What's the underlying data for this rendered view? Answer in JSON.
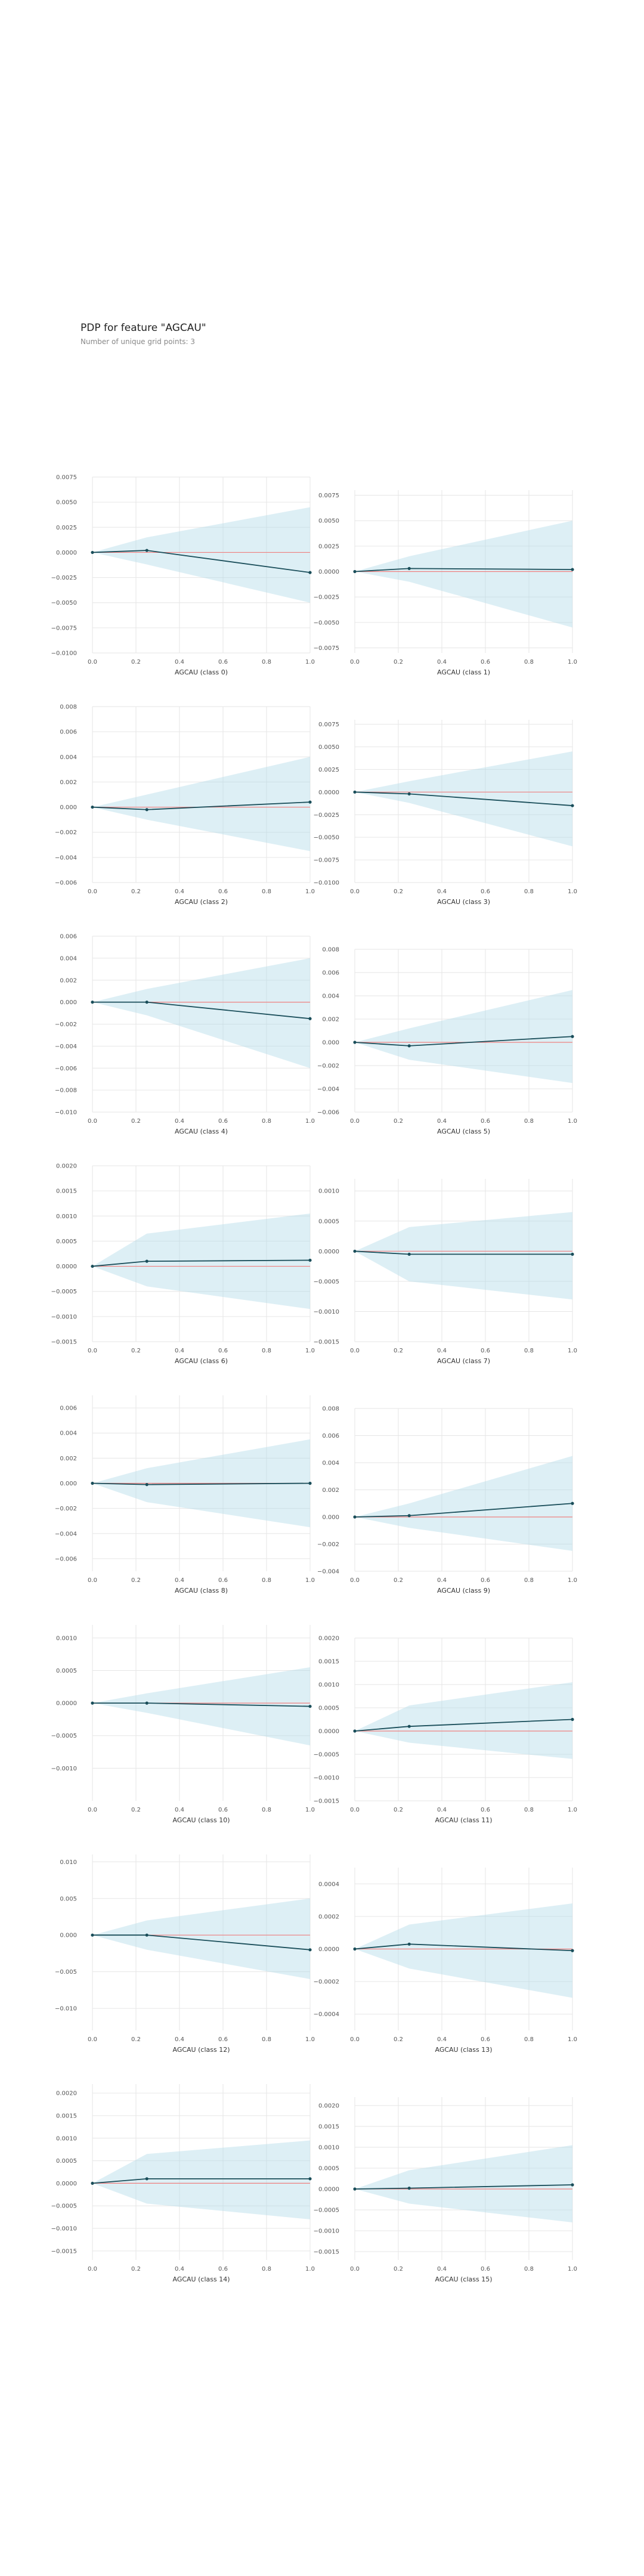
{
  "header": {
    "title": "PDP for feature \"AGCAU\"",
    "subtitle": "Number of unique grid points: 3"
  },
  "colors": {
    "band": "#add8e6",
    "line": "#1a4e5a",
    "zero": "#f08080",
    "grid": "#e6e6e6"
  },
  "chart_data": [
    {
      "type": "line",
      "xlabel": "AGCAU (class 0)",
      "x": [
        0,
        0.25,
        1
      ],
      "y": [
        0,
        0.0002,
        -0.002
      ],
      "upper": [
        0,
        0.0015,
        0.0045
      ],
      "lower": [
        0,
        -0.0012,
        -0.005
      ],
      "ylim": [
        -0.01,
        0.0075
      ],
      "yticks": [
        -0.01,
        -0.0075,
        -0.005,
        -0.0025,
        0.0,
        0.0025,
        0.005,
        0.0075
      ],
      "xticks": [
        0.0,
        0.2,
        0.4,
        0.6,
        0.8,
        1.0
      ],
      "ytick_labels": [
        "−0.0100",
        "−0.0075",
        "−0.0050",
        "−0.0025",
        "0.0000",
        "0.0025",
        "0.0050",
        "0.0075"
      ]
    },
    {
      "type": "line",
      "xlabel": "AGCAU (class 1)",
      "x": [
        0,
        0.25,
        1
      ],
      "y": [
        0,
        0.0003,
        0.0002
      ],
      "upper": [
        0,
        0.0015,
        0.005
      ],
      "lower": [
        0,
        -0.001,
        -0.0055
      ],
      "ylim": [
        -0.008,
        0.008
      ],
      "yticks": [
        -0.0075,
        -0.005,
        -0.0025,
        0.0,
        0.0025,
        0.005,
        0.0075
      ],
      "xticks": [
        0.0,
        0.2,
        0.4,
        0.6,
        0.8,
        1.0
      ],
      "ytick_labels": [
        "−0.0075",
        "−0.0050",
        "−0.0025",
        "0.0000",
        "0.0025",
        "0.0050",
        "0.0075"
      ]
    },
    {
      "type": "line",
      "xlabel": "AGCAU (class 2)",
      "x": [
        0,
        0.25,
        1
      ],
      "y": [
        0,
        -0.0002,
        0.0004
      ],
      "upper": [
        0,
        0.001,
        0.004
      ],
      "lower": [
        0,
        -0.001,
        -0.0035
      ],
      "ylim": [
        -0.006,
        0.008
      ],
      "yticks": [
        -0.006,
        -0.004,
        -0.002,
        0.0,
        0.002,
        0.004,
        0.006,
        0.008
      ],
      "xticks": [
        0.0,
        0.2,
        0.4,
        0.6,
        0.8,
        1.0
      ],
      "ytick_labels": [
        "−0.006",
        "−0.004",
        "−0.002",
        "0.000",
        "0.002",
        "0.004",
        "0.006",
        "0.008"
      ]
    },
    {
      "type": "line",
      "xlabel": "AGCAU (class 3)",
      "x": [
        0,
        0.25,
        1
      ],
      "y": [
        0,
        -0.0002,
        -0.0015
      ],
      "upper": [
        0,
        0.0012,
        0.0045
      ],
      "lower": [
        0,
        -0.0012,
        -0.006
      ],
      "ylim": [
        -0.01,
        0.008
      ],
      "yticks": [
        -0.01,
        -0.0075,
        -0.005,
        -0.0025,
        0.0,
        0.0025,
        0.005,
        0.0075
      ],
      "xticks": [
        0.0,
        0.2,
        0.4,
        0.6,
        0.8,
        1.0
      ],
      "ytick_labels": [
        "−0.0100",
        "−0.0075",
        "−0.0050",
        "−0.0025",
        "0.0000",
        "0.0025",
        "0.0050",
        "0.0075"
      ]
    },
    {
      "type": "line",
      "xlabel": "AGCAU (class 4)",
      "x": [
        0,
        0.25,
        1
      ],
      "y": [
        0,
        0.0,
        -0.0015
      ],
      "upper": [
        0,
        0.0012,
        0.004
      ],
      "lower": [
        0,
        -0.0012,
        -0.006
      ],
      "ylim": [
        -0.01,
        0.006
      ],
      "yticks": [
        -0.01,
        -0.008,
        -0.006,
        -0.004,
        -0.002,
        0.0,
        0.002,
        0.004,
        0.006
      ],
      "xticks": [
        0.0,
        0.2,
        0.4,
        0.6,
        0.8,
        1.0
      ],
      "ytick_labels": [
        "−0.010",
        "−0.008",
        "−0.006",
        "−0.004",
        "−0.002",
        "0.000",
        "0.002",
        "0.004",
        "0.006"
      ]
    },
    {
      "type": "line",
      "xlabel": "AGCAU (class 5)",
      "x": [
        0,
        0.25,
        1
      ],
      "y": [
        0,
        -0.0003,
        0.0005
      ],
      "upper": [
        0,
        0.0012,
        0.0045
      ],
      "lower": [
        0,
        -0.0015,
        -0.0035
      ],
      "ylim": [
        -0.006,
        0.008
      ],
      "yticks": [
        -0.006,
        -0.004,
        -0.002,
        0.0,
        0.002,
        0.004,
        0.006,
        0.008
      ],
      "xticks": [
        0.0,
        0.2,
        0.4,
        0.6,
        0.8,
        1.0
      ],
      "ytick_labels": [
        "−0.006",
        "−0.004",
        "−0.002",
        "0.000",
        "0.002",
        "0.004",
        "0.006",
        "0.008"
      ]
    },
    {
      "type": "line",
      "xlabel": "AGCAU (class 6)",
      "x": [
        0,
        0.25,
        1
      ],
      "y": [
        0,
        0.0001,
        0.00012
      ],
      "upper": [
        0,
        0.00065,
        0.00105
      ],
      "lower": [
        0,
        -0.0004,
        -0.00085
      ],
      "ylim": [
        -0.0015,
        0.002
      ],
      "yticks": [
        -0.0015,
        -0.001,
        -0.0005,
        0.0,
        0.0005,
        0.001,
        0.0015,
        0.002
      ],
      "xticks": [
        0.0,
        0.2,
        0.4,
        0.6,
        0.8,
        1.0
      ],
      "ytick_labels": [
        "−0.0015",
        "−0.0010",
        "−0.0005",
        "0.0000",
        "0.0005",
        "0.0010",
        "0.0015",
        "0.0020"
      ]
    },
    {
      "type": "line",
      "xlabel": "AGCAU (class 7)",
      "x": [
        0,
        0.25,
        1
      ],
      "y": [
        0,
        -5e-05,
        -5e-05
      ],
      "upper": [
        0,
        0.0004,
        0.00065
      ],
      "lower": [
        0,
        -0.0005,
        -0.0008
      ],
      "ylim": [
        -0.0015,
        0.0012
      ],
      "yticks": [
        -0.0015,
        -0.001,
        -0.0005,
        0.0,
        0.0005,
        0.001
      ],
      "xticks": [
        0.0,
        0.2,
        0.4,
        0.6,
        0.8,
        1.0
      ],
      "ytick_labels": [
        "−0.0015",
        "−0.0010",
        "−0.0005",
        "0.0000",
        "0.0005",
        "0.0010"
      ]
    },
    {
      "type": "line",
      "xlabel": "AGCAU (class 8)",
      "x": [
        0,
        0.25,
        1
      ],
      "y": [
        0,
        -0.0001,
        0.0
      ],
      "upper": [
        0,
        0.0012,
        0.0035
      ],
      "lower": [
        0,
        -0.0015,
        -0.0035
      ],
      "ylim": [
        -0.007,
        0.007
      ],
      "yticks": [
        -0.006,
        -0.004,
        -0.002,
        0.0,
        0.002,
        0.004,
        0.006
      ],
      "xticks": [
        0.0,
        0.2,
        0.4,
        0.6,
        0.8,
        1.0
      ],
      "ytick_labels": [
        "−0.006",
        "−0.004",
        "−0.002",
        "0.000",
        "0.002",
        "0.004",
        "0.006"
      ]
    },
    {
      "type": "line",
      "xlabel": "AGCAU (class 9)",
      "x": [
        0,
        0.25,
        1
      ],
      "y": [
        0,
        0.0001,
        0.001
      ],
      "upper": [
        0,
        0.001,
        0.0045
      ],
      "lower": [
        0,
        -0.0008,
        -0.0025
      ],
      "ylim": [
        -0.004,
        0.008
      ],
      "yticks": [
        -0.004,
        -0.002,
        0.0,
        0.002,
        0.004,
        0.006,
        0.008
      ],
      "xticks": [
        0.0,
        0.2,
        0.4,
        0.6,
        0.8,
        1.0
      ],
      "ytick_labels": [
        "−0.004",
        "−0.002",
        "0.000",
        "0.002",
        "0.004",
        "0.006",
        "0.008"
      ]
    },
    {
      "type": "line",
      "xlabel": "AGCAU (class 10)",
      "x": [
        0,
        0.25,
        1
      ],
      "y": [
        0,
        0.0,
        -5e-05
      ],
      "upper": [
        0,
        0.00015,
        0.00055
      ],
      "lower": [
        0,
        -0.00015,
        -0.00065
      ],
      "ylim": [
        -0.0015,
        0.0012
      ],
      "yticks": [
        -0.001,
        -0.0005,
        0.0,
        0.0005,
        0.001
      ],
      "xticks": [
        0.0,
        0.2,
        0.4,
        0.6,
        0.8,
        1.0
      ],
      "ytick_labels": [
        "−0.0010",
        "−0.0005",
        "0.0000",
        "0.0005",
        "0.0010"
      ]
    },
    {
      "type": "line",
      "xlabel": "AGCAU (class 11)",
      "x": [
        0,
        0.25,
        1
      ],
      "y": [
        0,
        0.0001,
        0.00025
      ],
      "upper": [
        0,
        0.00055,
        0.00105
      ],
      "lower": [
        0,
        -0.00025,
        -0.0006
      ],
      "ylim": [
        -0.0015,
        0.002
      ],
      "yticks": [
        -0.0015,
        -0.001,
        -0.0005,
        0.0,
        0.0005,
        0.001,
        0.0015,
        0.002
      ],
      "xticks": [
        0.0,
        0.2,
        0.4,
        0.6,
        0.8,
        1.0
      ],
      "ytick_labels": [
        "−0.0015",
        "−0.0010",
        "−0.0005",
        "0.0000",
        "0.0005",
        "0.0010",
        "0.0015",
        "0.0020"
      ]
    },
    {
      "type": "line",
      "xlabel": "AGCAU (class 12)",
      "x": [
        0,
        0.25,
        1
      ],
      "y": [
        0,
        0.0,
        -0.002
      ],
      "upper": [
        0,
        0.002,
        0.005
      ],
      "lower": [
        0,
        -0.002,
        -0.006
      ],
      "ylim": [
        -0.013,
        0.011
      ],
      "yticks": [
        -0.01,
        -0.005,
        0.0,
        0.005,
        0.01
      ],
      "xticks": [
        0.0,
        0.2,
        0.4,
        0.6,
        0.8,
        1.0
      ],
      "ytick_labels": [
        "−0.010",
        "−0.005",
        "0.000",
        "0.005",
        "0.010"
      ]
    },
    {
      "type": "line",
      "xlabel": "AGCAU (class 13)",
      "x": [
        0,
        0.25,
        1
      ],
      "y": [
        0,
        3e-05,
        -1e-05
      ],
      "upper": [
        0,
        0.00015,
        0.00028
      ],
      "lower": [
        0,
        -0.00012,
        -0.0003
      ],
      "ylim": [
        -0.0005,
        0.0005
      ],
      "yticks": [
        -0.0004,
        -0.0002,
        0.0,
        0.0002,
        0.0004
      ],
      "xticks": [
        0.0,
        0.2,
        0.4,
        0.6,
        0.8,
        1.0
      ],
      "ytick_labels": [
        "−0.0004",
        "−0.0002",
        "0.0000",
        "0.0002",
        "0.0004"
      ]
    },
    {
      "type": "line",
      "xlabel": "AGCAU (class 14)",
      "x": [
        0,
        0.25,
        1
      ],
      "y": [
        0,
        0.0001,
        0.0001
      ],
      "upper": [
        0,
        0.00065,
        0.00095
      ],
      "lower": [
        0,
        -0.00045,
        -0.0008
      ],
      "ylim": [
        -0.0017,
        0.0022
      ],
      "yticks": [
        -0.0015,
        -0.001,
        -0.0005,
        0.0,
        0.0005,
        0.001,
        0.0015,
        0.002
      ],
      "xticks": [
        0.0,
        0.2,
        0.4,
        0.6,
        0.8,
        1.0
      ],
      "ytick_labels": [
        "−0.0015",
        "−0.0010",
        "−0.0005",
        "0.0000",
        "0.0005",
        "0.0010",
        "0.0015",
        "0.0020"
      ]
    },
    {
      "type": "line",
      "xlabel": "AGCAU (class 15)",
      "x": [
        0,
        0.25,
        1
      ],
      "y": [
        0,
        2e-05,
        0.0001
      ],
      "upper": [
        0,
        0.00045,
        0.00105
      ],
      "lower": [
        0,
        -0.00035,
        -0.0008
      ],
      "ylim": [
        -0.0017,
        0.0022
      ],
      "yticks": [
        -0.0015,
        -0.001,
        -0.0005,
        0.0,
        0.0005,
        0.001,
        0.0015,
        0.002
      ],
      "xticks": [
        0.0,
        0.2,
        0.4,
        0.6,
        0.8,
        1.0
      ],
      "ytick_labels": [
        "−0.0015",
        "−0.0010",
        "−0.0005",
        "0.0000",
        "0.0005",
        "0.0010",
        "0.0015",
        "0.0020"
      ]
    }
  ]
}
